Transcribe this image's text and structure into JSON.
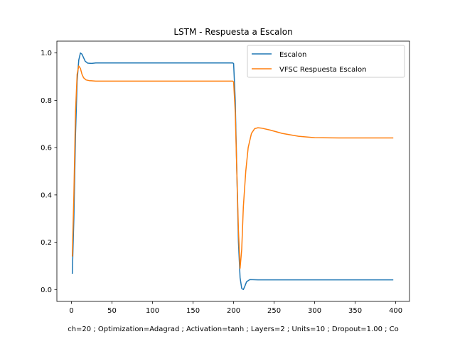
{
  "chart_data": {
    "type": "line",
    "title": "LSTM - Respuesta a Escalon",
    "xlabel": "ch=20 ; Optimization=Adagrad ; Activation=tanh ; Layers=2 ; Units=10 ; Dropout=1.00 ; Co",
    "ylabel": "",
    "xlim": [
      -18,
      417
    ],
    "ylim": [
      -0.05,
      1.05
    ],
    "xticks": [
      0,
      50,
      100,
      150,
      200,
      250,
      300,
      350,
      400
    ],
    "yticks": [
      0.0,
      0.2,
      0.4,
      0.6,
      0.8,
      1.0
    ],
    "ytick_labels": [
      "0.0",
      "0.2",
      "0.4",
      "0.6",
      "0.8",
      "1.0"
    ],
    "grid": false,
    "legend_position": "top-right",
    "series": [
      {
        "name": "Escalon",
        "color": "#1f77b4",
        "points": [
          [
            1,
            0.067
          ],
          [
            3,
            0.3
          ],
          [
            5,
            0.65
          ],
          [
            7,
            0.88
          ],
          [
            9,
            0.97
          ],
          [
            11,
            1.0
          ],
          [
            13,
            0.995
          ],
          [
            15,
            0.98
          ],
          [
            17,
            0.965
          ],
          [
            20,
            0.957
          ],
          [
            25,
            0.956
          ],
          [
            30,
            0.958
          ],
          [
            40,
            0.958
          ],
          [
            100,
            0.958
          ],
          [
            150,
            0.958
          ],
          [
            199,
            0.958
          ],
          [
            200,
            0.955
          ],
          [
            202,
            0.8
          ],
          [
            204,
            0.5
          ],
          [
            206,
            0.2
          ],
          [
            208,
            0.05
          ],
          [
            210,
            0.005
          ],
          [
            212,
            0.0
          ],
          [
            214,
            0.015
          ],
          [
            216,
            0.033
          ],
          [
            220,
            0.042
          ],
          [
            230,
            0.041
          ],
          [
            260,
            0.041
          ],
          [
            300,
            0.041
          ],
          [
            350,
            0.041
          ],
          [
            397,
            0.041
          ]
        ]
      },
      {
        "name": "VFSC Respuesta Escalon",
        "color": "#ff7f0e",
        "points": [
          [
            1,
            0.14
          ],
          [
            3,
            0.4
          ],
          [
            5,
            0.75
          ],
          [
            7,
            0.91
          ],
          [
            9,
            0.945
          ],
          [
            11,
            0.935
          ],
          [
            13,
            0.91
          ],
          [
            15,
            0.895
          ],
          [
            18,
            0.886
          ],
          [
            22,
            0.883
          ],
          [
            30,
            0.881
          ],
          [
            100,
            0.881
          ],
          [
            150,
            0.881
          ],
          [
            199,
            0.881
          ],
          [
            200,
            0.878
          ],
          [
            202,
            0.75
          ],
          [
            204,
            0.5
          ],
          [
            206,
            0.25
          ],
          [
            208,
            0.09
          ],
          [
            210,
            0.17
          ],
          [
            212,
            0.35
          ],
          [
            215,
            0.5
          ],
          [
            218,
            0.6
          ],
          [
            222,
            0.66
          ],
          [
            226,
            0.68
          ],
          [
            230,
            0.684
          ],
          [
            235,
            0.682
          ],
          [
            245,
            0.674
          ],
          [
            260,
            0.66
          ],
          [
            280,
            0.648
          ],
          [
            300,
            0.642
          ],
          [
            330,
            0.641
          ],
          [
            360,
            0.641
          ],
          [
            397,
            0.641
          ]
        ]
      }
    ]
  }
}
